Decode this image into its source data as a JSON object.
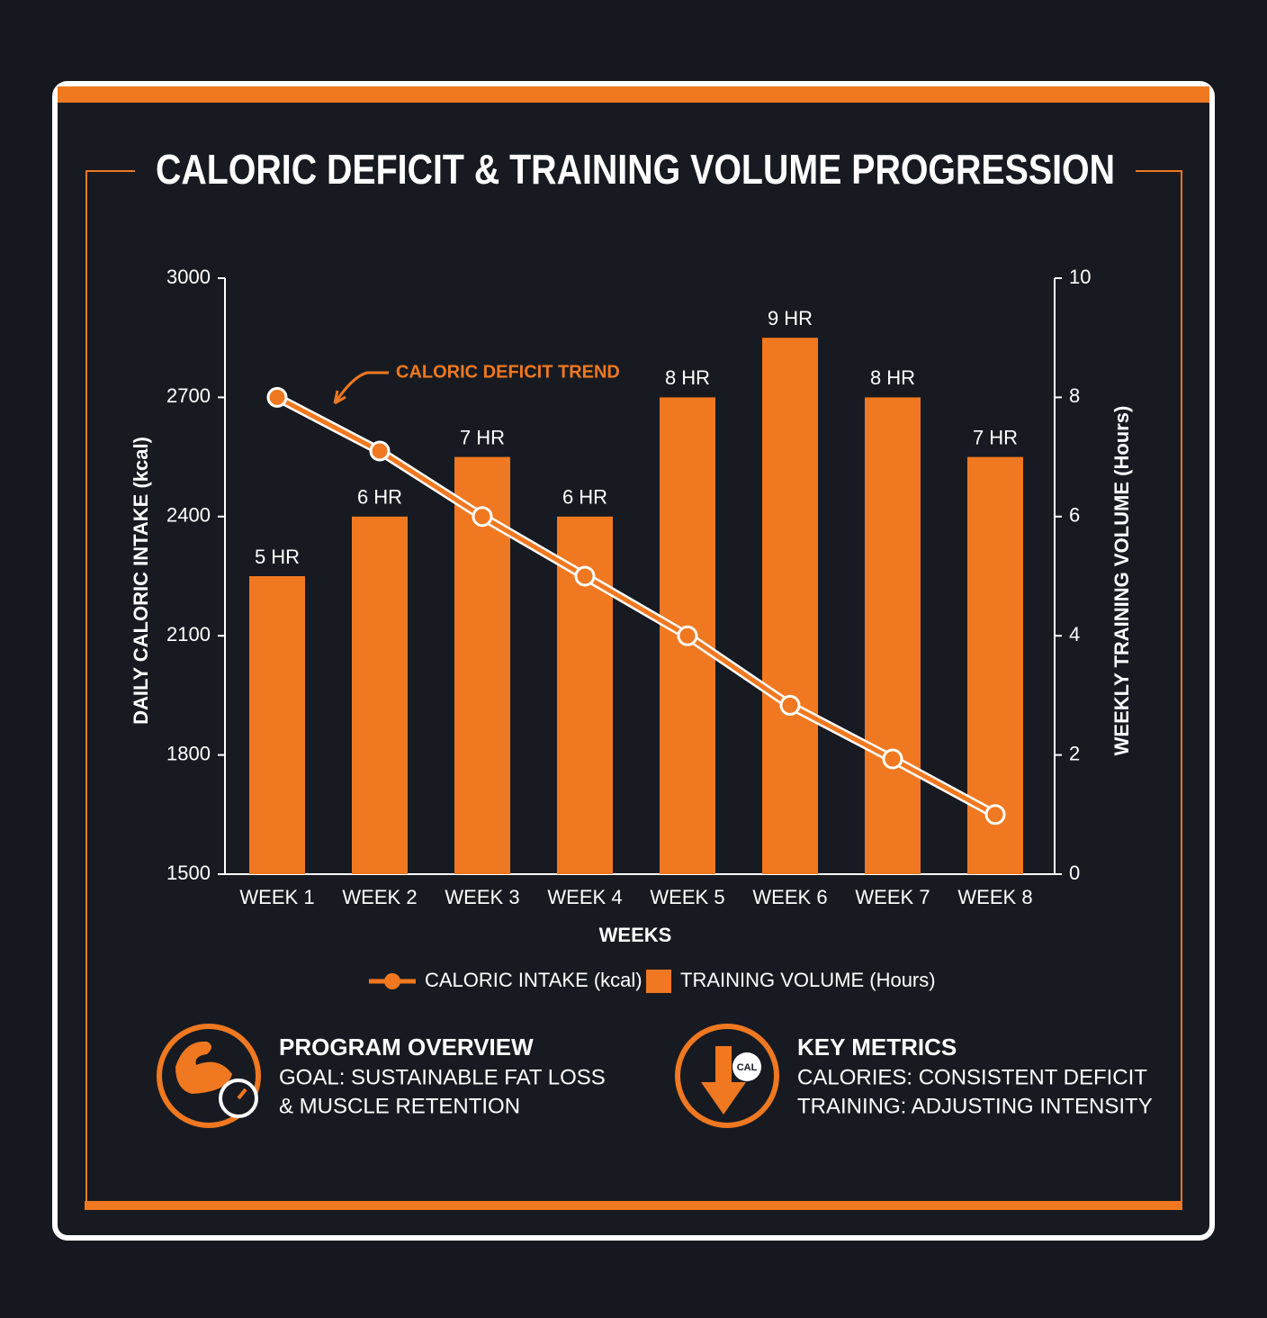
{
  "chart_data": {
    "type": "combo",
    "title": "CALORIC DEFICIT & TRAINING VOLUME PROGRESSION",
    "x_label": "WEEKS",
    "y_label": "DAILY CALORIC INTAKE (kcal)",
    "y2_label": "WEEKLY TRAINING VOLUME (Hours)",
    "annotation": "CALORIC DEFICIT TREND",
    "categories": [
      "WEEK 1",
      "WEEK 2",
      "WEEK 3",
      "WEEK 4",
      "WEEK 5",
      "WEEK 6",
      "WEEK 7",
      "WEEK 8"
    ],
    "series": [
      {
        "name": "CALORIC INTAKE (kcal)",
        "type": "line",
        "color": "#f07820",
        "values": [
          2700,
          2565,
          2400,
          2250,
          2100,
          1925,
          1790,
          1650
        ]
      },
      {
        "name": "TRAINING VOLUME (Hours)",
        "type": "bar",
        "axis": "y2",
        "color": "#f07820",
        "values": [
          5,
          6,
          7,
          6,
          8,
          9,
          8,
          7
        ],
        "value_labels": [
          "5 HR",
          "6 HR",
          "7 HR",
          "6 HR",
          "8 HR",
          "9 HR",
          "8 HR",
          "7 HR"
        ]
      }
    ],
    "ylim": [
      1500,
      3000
    ],
    "yticks": [
      1500,
      1800,
      2100,
      2400,
      2700,
      3000
    ],
    "y2lim": [
      0,
      10
    ],
    "y2ticks": [
      0,
      2,
      4,
      6,
      8,
      10
    ],
    "grid": false,
    "legend": "bottom"
  },
  "panels": [
    {
      "title": "PROGRAM OVERVIEW",
      "lines": [
        "GOAL: SUSTAINABLE FAT LOSS",
        "& MUSCLE RETENTION"
      ]
    },
    {
      "title": "KEY METRICS",
      "lines": [
        "CALORIES: CONSISTENT DEFICIT",
        "TRAINING: ADJUSTING INTENSITY"
      ]
    }
  ]
}
